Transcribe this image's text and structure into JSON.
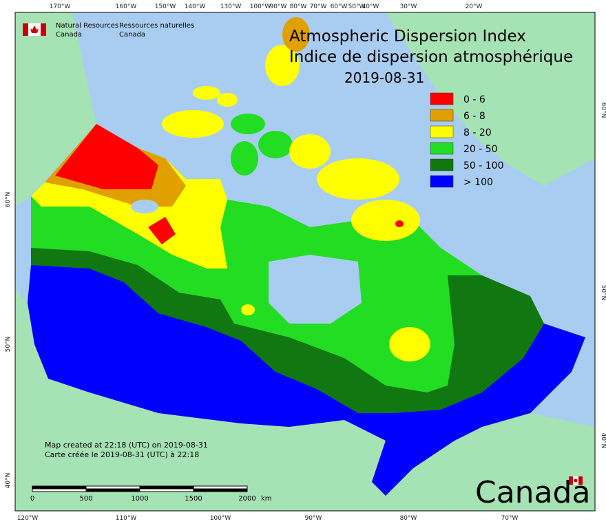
{
  "agency": {
    "en_line1": "Natural Resources",
    "en_line2": "Canada",
    "fr_line1": "Ressources naturelles",
    "fr_line2": "Canada"
  },
  "title": "Atmospheric Dispersion Index",
  "subtitle": "Indice de dispersion atmosphérique",
  "date": "2019-08-31",
  "legend": [
    {
      "label": "0 - 6",
      "color": "#ff0000"
    },
    {
      "label": "6 - 8",
      "color": "#e0a000"
    },
    {
      "label": "8 - 20",
      "color": "#ffff00"
    },
    {
      "label": "20 - 50",
      "color": "#22dd22"
    },
    {
      "label": "50 - 100",
      "color": "#117711"
    },
    {
      "label": "> 100",
      "color": "#0000ff"
    }
  ],
  "axes": {
    "top": [
      "170°W",
      "160°W",
      "150°W",
      "140°W",
      "130°W",
      "100°W",
      "90°W",
      "80°W",
      "70°W",
      "60°W",
      "50°W",
      "40°W",
      "30°W",
      "20°W"
    ],
    "bottom": [
      "120°W",
      "110°W",
      "100°W",
      "90°W",
      "80°W",
      "70°W"
    ],
    "left": [
      "60°N",
      "50°N",
      "40°N"
    ],
    "right": [
      "60°N",
      "50°N",
      "40°N"
    ]
  },
  "footer": {
    "created_en": "Map created at 22:18 (UTC) on 2019-08-31",
    "created_fr": "Carte créée le 2019-08-31 (UTC) à 22:18"
  },
  "scale_bar": {
    "labels": [
      "0",
      "500",
      "1000",
      "1500",
      "2000"
    ],
    "unit": "km"
  },
  "wordmark": "Canada"
}
